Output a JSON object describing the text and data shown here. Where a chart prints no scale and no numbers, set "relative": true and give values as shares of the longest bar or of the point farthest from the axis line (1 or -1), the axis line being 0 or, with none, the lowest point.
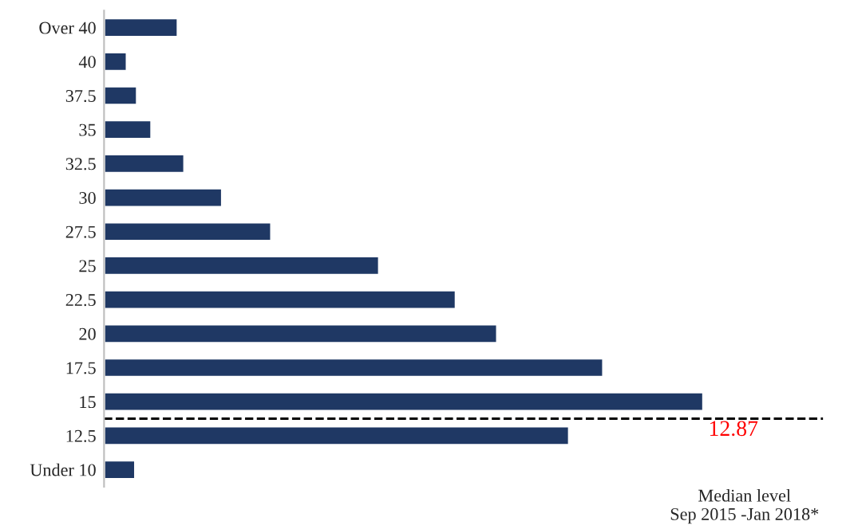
{
  "chart_data": {
    "type": "bar",
    "orientation": "horizontal",
    "relative": true,
    "categories": [
      "Over 40",
      "40",
      "37.5",
      "35",
      "32.5",
      "30",
      "27.5",
      "25",
      "22.5",
      "20",
      "17.5",
      "15",
      "12.5",
      "Under 10"
    ],
    "values": [
      0.123,
      0.038,
      0.055,
      0.079,
      0.134,
      0.197,
      0.279,
      0.459,
      0.587,
      0.656,
      0.833,
      1,
      0.776,
      0.052
    ],
    "color": "#1f3864",
    "annotations": [
      "12.87",
      "Median level\nSep 2015 -Jan 2018*"
    ]
  }
}
